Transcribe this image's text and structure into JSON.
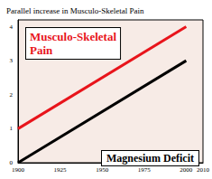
{
  "chart_data": {
    "type": "line",
    "title": "Parallel increase in Musculo-Skeletal Pain",
    "xlim": [
      1900,
      2010
    ],
    "xticks": [
      1900,
      1925,
      1950,
      1975,
      2000
    ],
    "ylim": [
      0,
      4.2
    ],
    "yticks": [
      0,
      1,
      2,
      3,
      4
    ],
    "grid": false,
    "series": [
      {
        "name": "Musculo-Skeletal Pain",
        "color": "#e8141b",
        "x": [
          1900,
          2000
        ],
        "values": [
          1,
          4
        ]
      },
      {
        "name": "Magnesium Deficit",
        "color": "#000000",
        "x": [
          1900,
          2000
        ],
        "values": [
          0,
          3
        ]
      }
    ]
  }
}
